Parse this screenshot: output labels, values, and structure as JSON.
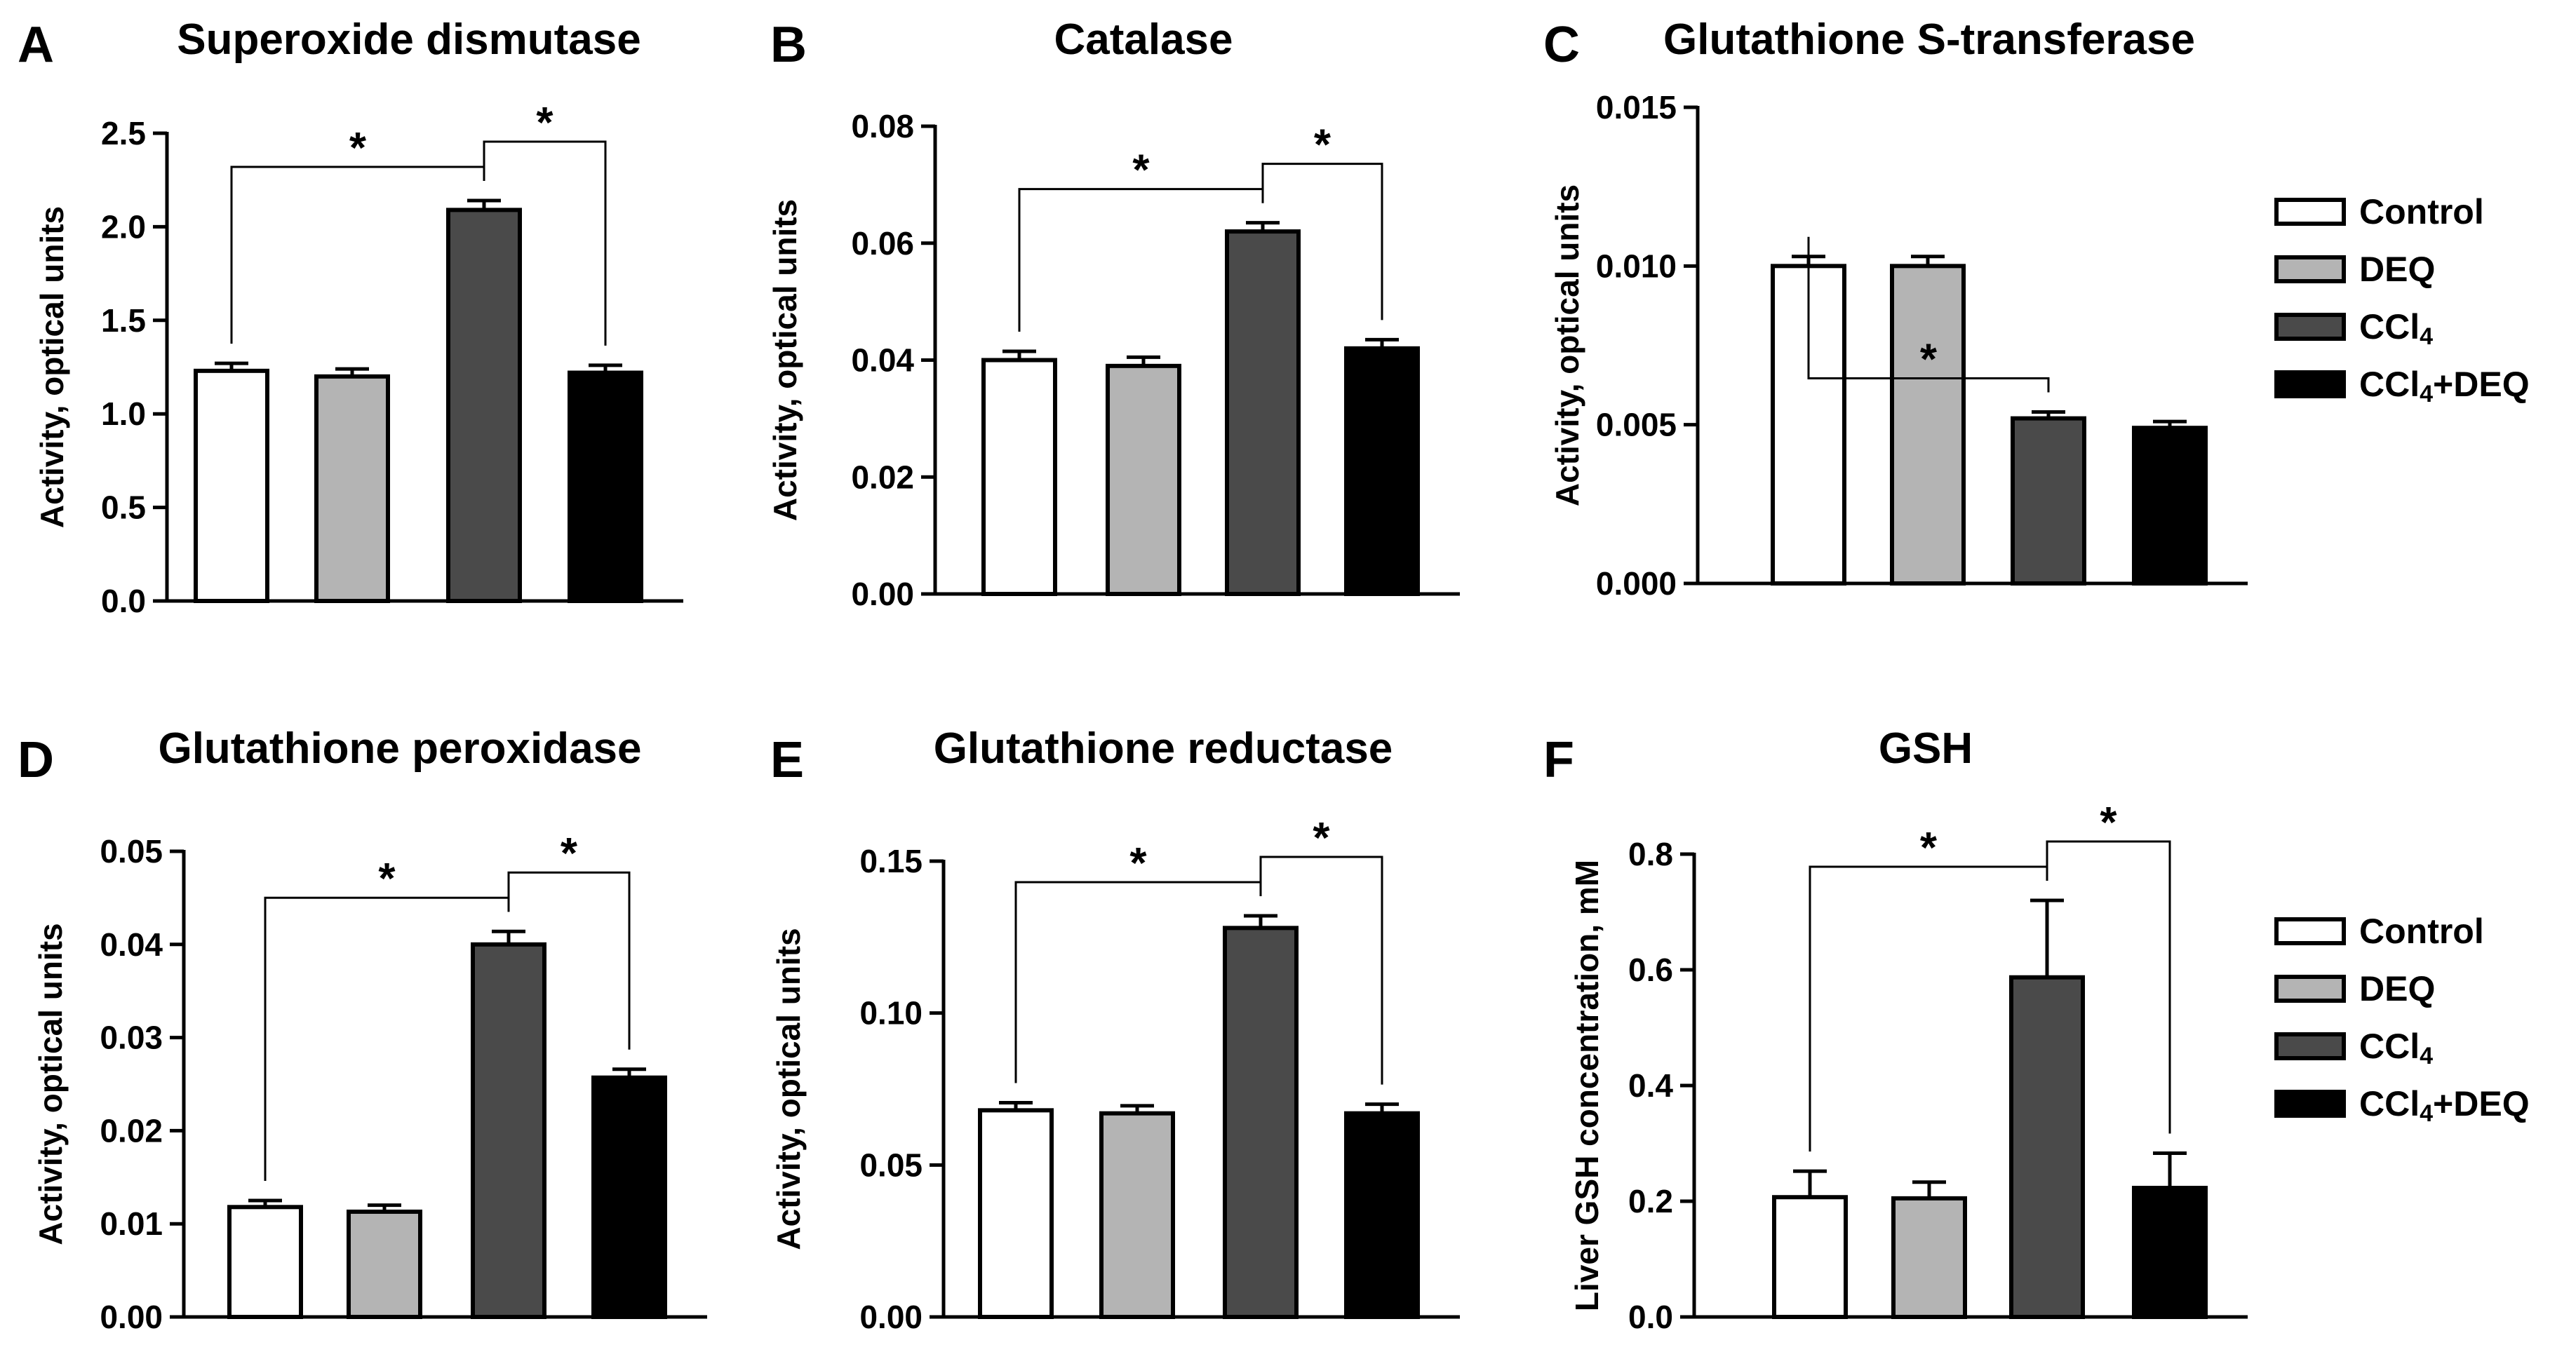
{
  "figure": {
    "legend": [
      {
        "label": "Control",
        "color": "#ffffff"
      },
      {
        "label": "DEQ",
        "color": "#b4b4b4"
      },
      {
        "label": "CCl",
        "sub": "4",
        "color": "#4a4a4a"
      },
      {
        "label": "CCl",
        "sub": "4",
        "suffix": "+DEQ",
        "color": "#000000"
      }
    ]
  },
  "chart_data": [
    {
      "panel": "A",
      "type": "bar",
      "title": "Superoxide dismutase",
      "xlabel": "",
      "ylabel": "Activity, optical units",
      "ylim": [
        0,
        2.5
      ],
      "yticks": [
        "0.0",
        "0.5",
        "1.0",
        "1.5",
        "2.0",
        "2.5"
      ],
      "categories": [
        "Control",
        "DEQ",
        "CCl4",
        "CCl4+DEQ"
      ],
      "values": [
        1.23,
        1.2,
        2.09,
        1.22
      ],
      "errors": [
        0.04,
        0.04,
        0.05,
        0.04
      ],
      "significance": [
        {
          "from": 0,
          "to": 2,
          "label": "*"
        },
        {
          "from": 2,
          "to": 3,
          "label": "*"
        }
      ]
    },
    {
      "panel": "B",
      "type": "bar",
      "title": "Catalase",
      "xlabel": "",
      "ylabel": "Activity, optical units",
      "ylim": [
        0,
        0.08
      ],
      "yticks": [
        "0.00",
        "0.02",
        "0.04",
        "0.06",
        "0.08"
      ],
      "categories": [
        "Control",
        "DEQ",
        "CCl4",
        "CCl4+DEQ"
      ],
      "values": [
        0.04,
        0.039,
        0.062,
        0.042
      ],
      "errors": [
        0.0015,
        0.0015,
        0.0015,
        0.0015
      ],
      "significance": [
        {
          "from": 0,
          "to": 2,
          "label": "*"
        },
        {
          "from": 2,
          "to": 3,
          "label": "*"
        }
      ]
    },
    {
      "panel": "C",
      "type": "bar",
      "title": "Glutathione S-transferase",
      "xlabel": "",
      "ylabel": "Activity, optical units",
      "ylim": [
        0,
        0.015
      ],
      "yticks": [
        "0.000",
        "0.005",
        "0.010",
        "0.015"
      ],
      "categories": [
        "Control",
        "DEQ",
        "CCl4",
        "CCl4+DEQ"
      ],
      "values": [
        0.01,
        0.01,
        0.0052,
        0.0049
      ],
      "errors": [
        0.0003,
        0.0003,
        0.0002,
        0.0002
      ],
      "significance": [
        {
          "from": 0,
          "to": 2,
          "label": "*"
        }
      ]
    },
    {
      "panel": "D",
      "type": "bar",
      "title": "Glutathione peroxidase",
      "xlabel": "",
      "ylabel": "Activity, optical units",
      "ylim": [
        0,
        0.05
      ],
      "yticks": [
        "0.00",
        "0.01",
        "0.02",
        "0.03",
        "0.04",
        "0.05"
      ],
      "categories": [
        "Control",
        "DEQ",
        "CCl4",
        "CCl4+DEQ"
      ],
      "values": [
        0.0118,
        0.0113,
        0.04,
        0.0257
      ],
      "errors": [
        0.0007,
        0.0007,
        0.0014,
        0.0009
      ],
      "significance": [
        {
          "from": 0,
          "to": 2,
          "label": "*"
        },
        {
          "from": 2,
          "to": 3,
          "label": "*"
        }
      ]
    },
    {
      "panel": "E",
      "type": "bar",
      "title": "Glutathione reductase",
      "xlabel": "",
      "ylabel": "Activity, optical units",
      "ylim": [
        0,
        0.15
      ],
      "yticks": [
        "0.00",
        "0.05",
        "0.10",
        "0.15"
      ],
      "categories": [
        "Control",
        "DEQ",
        "CCl4",
        "CCl4+DEQ"
      ],
      "values": [
        0.068,
        0.067,
        0.128,
        0.067
      ],
      "errors": [
        0.0025,
        0.0025,
        0.004,
        0.003
      ],
      "significance": [
        {
          "from": 0,
          "to": 2,
          "label": "*"
        },
        {
          "from": 2,
          "to": 3,
          "label": "*"
        }
      ]
    },
    {
      "panel": "F",
      "type": "bar",
      "title": "GSH",
      "xlabel": "",
      "ylabel": "Liver GSH concentration, mM",
      "ylim": [
        0,
        0.8
      ],
      "yticks": [
        "0.0",
        "0.2",
        "0.4",
        "0.6",
        "0.8"
      ],
      "categories": [
        "Control",
        "DEQ",
        "CCl4",
        "CCl4+DEQ"
      ],
      "values": [
        0.207,
        0.205,
        0.587,
        0.223
      ],
      "errors": [
        0.045,
        0.028,
        0.133,
        0.06
      ],
      "significance": [
        {
          "from": 0,
          "to": 2,
          "label": "*"
        },
        {
          "from": 2,
          "to": 3,
          "label": "*"
        }
      ]
    }
  ]
}
